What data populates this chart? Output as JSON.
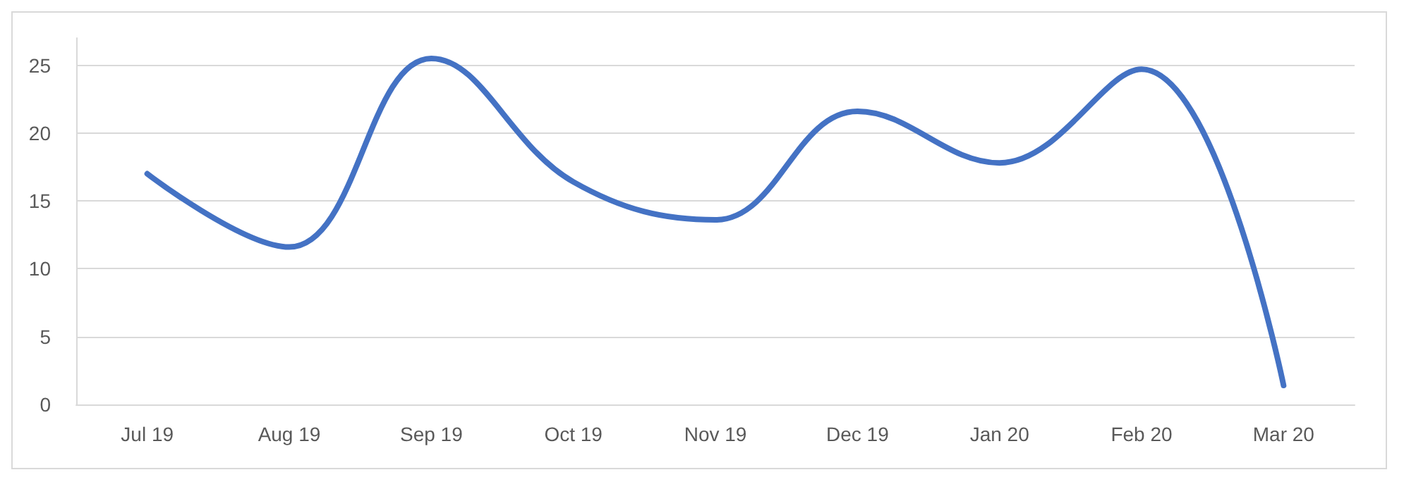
{
  "chart_data": {
    "type": "line",
    "categories": [
      "Jul 19",
      "Aug 19",
      "Sep 19",
      "Oct 19",
      "Nov 19",
      "Dec 19",
      "Jan 20",
      "Feb 20",
      "Mar 20"
    ],
    "series": [
      {
        "color": "#4472c4",
        "values": [
          17.0,
          11.6,
          25.5,
          16.4,
          13.6,
          21.6,
          17.8,
          24.7,
          1.4
        ]
      }
    ],
    "ylim": [
      0,
      27
    ],
    "yticks": [
      0,
      5,
      10,
      15,
      20,
      25
    ],
    "grid": "y",
    "marker": "none",
    "line_style": "solid"
  }
}
